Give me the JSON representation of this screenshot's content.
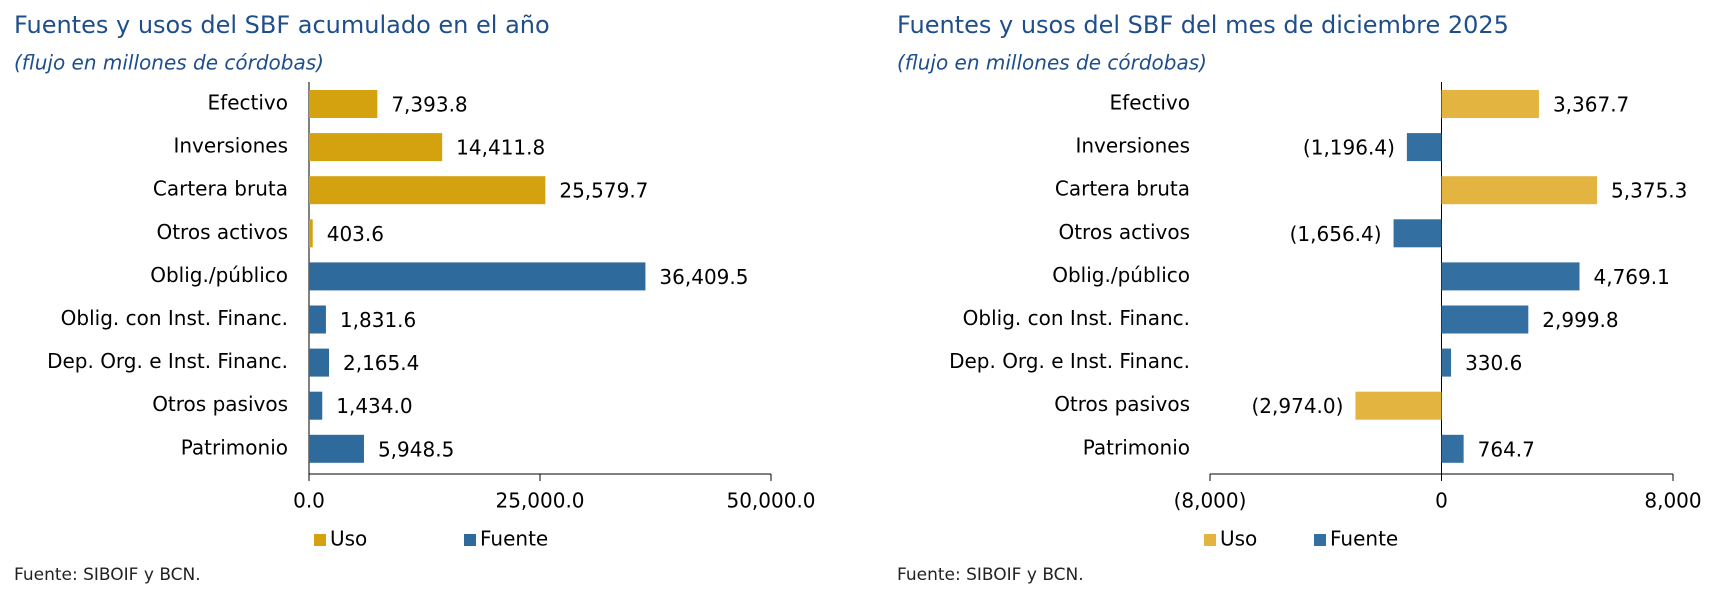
{
  "chart_data": [
    {
      "type": "bar",
      "orientation": "horizontal",
      "title": "Fuentes y usos del SBF acumulado en el año",
      "subtitle": "(flujo en millones de córdobas)",
      "source": "Fuente: SIBOIF y BCN.",
      "categories": [
        "Efectivo",
        "Inversiones",
        "Cartera bruta",
        "Otros activos",
        "Oblig./público",
        "Oblig. con Inst. Financ.",
        "Dep. Org. e Inst. Financ.",
        "Otros pasivos",
        "Patrimonio"
      ],
      "series": [
        {
          "name": "Uso",
          "color": "#D4A20F",
          "values": [
            7393.8,
            14411.8,
            25579.7,
            403.6,
            null,
            null,
            null,
            null,
            null
          ],
          "value_labels": [
            "7,393.8",
            "14,411.8",
            "25,579.7",
            "403.6",
            null,
            null,
            null,
            null,
            null
          ]
        },
        {
          "name": "Fuente",
          "color": "#2E6A9B",
          "values": [
            null,
            null,
            null,
            null,
            36409.5,
            1831.6,
            2165.4,
            1434.0,
            5948.5
          ],
          "value_labels": [
            null,
            null,
            null,
            null,
            "36,409.5",
            "1,831.6",
            "2,165.4",
            "1,434.0",
            "5,948.5"
          ]
        }
      ],
      "xlim": [
        0,
        50000
      ],
      "xticks": [
        {
          "value": 0,
          "label": "0.0"
        },
        {
          "value": 25000,
          "label": "25,000.0"
        },
        {
          "value": 50000,
          "label": "50,000.0"
        }
      ],
      "legend": "bottom"
    },
    {
      "type": "bar",
      "orientation": "horizontal",
      "title": "Fuentes y usos del SBF del mes de diciembre 2025",
      "subtitle": "(flujo en millones de córdobas)",
      "source": "Fuente: SIBOIF y BCN.",
      "categories": [
        "Efectivo",
        "Inversiones",
        "Cartera bruta",
        "Otros activos",
        "Oblig./público",
        "Oblig. con Inst. Financ.",
        "Dep. Org. e Inst. Financ.",
        "Otros pasivos",
        "Patrimonio"
      ],
      "series": [
        {
          "name": "Uso",
          "color": "#E3B440",
          "values": [
            3367.7,
            null,
            5375.3,
            null,
            null,
            null,
            null,
            -2974.0,
            null
          ],
          "value_labels": [
            "3,367.7",
            null,
            "5,375.3",
            null,
            null,
            null,
            null,
            "(2,974.0)",
            null
          ]
        },
        {
          "name": "Fuente",
          "color": "#336FA0",
          "values": [
            null,
            -1196.4,
            null,
            -1656.4,
            4769.1,
            2999.8,
            330.6,
            null,
            764.7
          ],
          "value_labels": [
            null,
            "(1,196.4)",
            null,
            "(1,656.4)",
            "4,769.1",
            "2,999.8",
            "330.6",
            null,
            "764.7"
          ]
        }
      ],
      "xlim": [
        -8000,
        8000
      ],
      "xticks": [
        {
          "value": -8000,
          "label": "(8,000)"
        },
        0,
        {
          "value": 8000,
          "label": "8,000"
        }
      ],
      "legend": "bottom"
    }
  ]
}
